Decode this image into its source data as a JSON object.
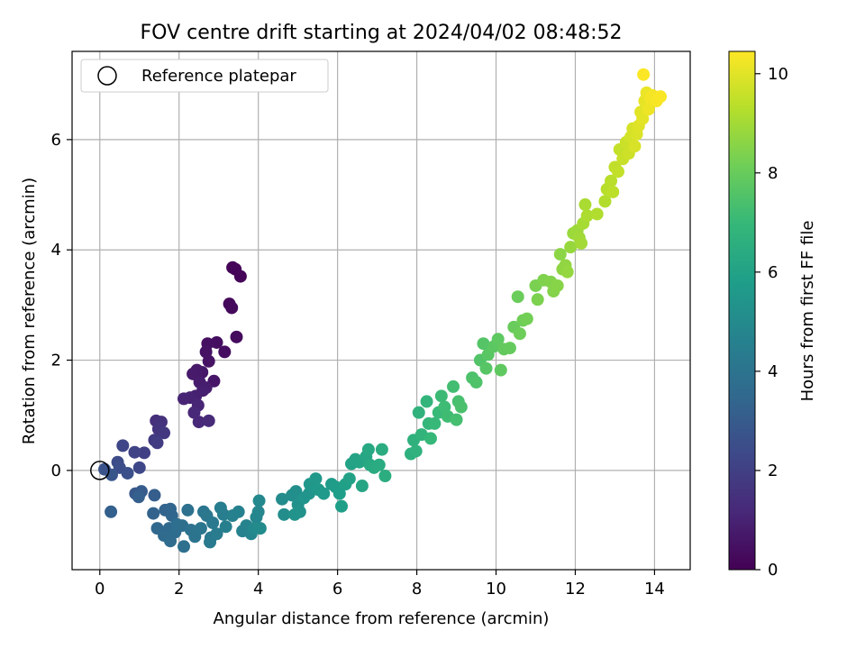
{
  "chart_data": {
    "type": "scatter",
    "title": "FOV centre drift starting at 2024/04/02 08:48:52",
    "xlabel": "Angular distance from reference (arcmin)",
    "ylabel": "Rotation from reference (arcmin)",
    "xlim": [
      -0.7,
      14.9
    ],
    "ylim": [
      -1.8,
      7.6
    ],
    "xticks": [
      0,
      2,
      4,
      6,
      8,
      10,
      12,
      14
    ],
    "yticks": [
      0,
      2,
      4,
      6
    ],
    "grid": true,
    "legend": {
      "placement": "upper-left",
      "label": "Reference platepar"
    },
    "reference_point": {
      "x": 0,
      "y": 0
    },
    "colorbar": {
      "label": "Hours from first FF file",
      "colormap": "viridis",
      "range": [
        0,
        10.45
      ],
      "ticks": [
        0,
        2,
        4,
        6,
        8,
        10
      ]
    },
    "colors": {
      "viridis": [
        "#440154",
        "#482878",
        "#3e4989",
        "#31688e",
        "#26828e",
        "#1f9e89",
        "#35b779",
        "#6ece58",
        "#b5de2b",
        "#fde725"
      ]
    },
    "points": [
      [
        3.35,
        3.68,
        0.05
      ],
      [
        3.42,
        3.65,
        0.1
      ],
      [
        3.55,
        3.52,
        0.15
      ],
      [
        3.27,
        3.02,
        0.2
      ],
      [
        3.33,
        2.95,
        0.25
      ],
      [
        3.45,
        2.42,
        0.3
      ],
      [
        3.15,
        2.15,
        0.35
      ],
      [
        2.95,
        2.32,
        0.4
      ],
      [
        2.72,
        2.3,
        0.45
      ],
      [
        2.68,
        2.15,
        0.5
      ],
      [
        2.75,
        1.98,
        0.55
      ],
      [
        2.88,
        1.62,
        0.6
      ],
      [
        2.58,
        1.78,
        0.65
      ],
      [
        2.45,
        1.82,
        0.7
      ],
      [
        2.35,
        1.75,
        0.75
      ],
      [
        2.52,
        1.6,
        0.8
      ],
      [
        2.68,
        1.5,
        0.85
      ],
      [
        2.6,
        1.45,
        0.9
      ],
      [
        2.42,
        1.35,
        0.95
      ],
      [
        2.28,
        1.32,
        1.0
      ],
      [
        2.12,
        1.3,
        1.05
      ],
      [
        2.48,
        1.18,
        1.1
      ],
      [
        2.38,
        1.05,
        1.15
      ],
      [
        2.5,
        0.88,
        1.2
      ],
      [
        2.75,
        0.9,
        1.25
      ],
      [
        1.42,
        0.9,
        1.4
      ],
      [
        1.55,
        0.88,
        1.5
      ],
      [
        1.48,
        0.75,
        1.6
      ],
      [
        1.62,
        0.68,
        1.7
      ],
      [
        1.38,
        0.55,
        1.8
      ],
      [
        1.45,
        0.5,
        1.9
      ],
      [
        1.12,
        0.32,
        2.0
      ],
      [
        0.88,
        0.33,
        2.1
      ],
      [
        0.58,
        0.45,
        2.2
      ],
      [
        1.0,
        0.05,
        2.3
      ],
      [
        0.45,
        0.15,
        2.4
      ],
      [
        0.5,
        0.05,
        2.5
      ],
      [
        0.7,
        -0.05,
        2.6
      ],
      [
        0.12,
        0.02,
        2.7
      ],
      [
        0.3,
        -0.08,
        2.8
      ],
      [
        0.9,
        -0.42,
        2.9
      ],
      [
        1.05,
        -0.38,
        3.0
      ],
      [
        1.38,
        -0.45,
        3.1
      ],
      [
        0.98,
        -0.48,
        3.15
      ],
      [
        0.28,
        -0.75,
        3.2
      ],
      [
        1.35,
        -0.78,
        3.3
      ],
      [
        1.65,
        -0.72,
        3.35
      ],
      [
        1.78,
        -0.7,
        3.4
      ],
      [
        1.82,
        -0.82,
        3.45
      ],
      [
        1.45,
        -1.05,
        3.5
      ],
      [
        1.75,
        -1.05,
        3.55
      ],
      [
        1.62,
        -1.18,
        3.6
      ],
      [
        1.78,
        -1.28,
        3.65
      ],
      [
        1.9,
        -1.12,
        3.7
      ],
      [
        1.95,
        -0.98,
        3.75
      ],
      [
        2.08,
        -1.0,
        3.8
      ],
      [
        2.12,
        -1.38,
        3.85
      ],
      [
        2.22,
        -0.72,
        3.9
      ],
      [
        2.3,
        -1.08,
        3.95
      ],
      [
        2.4,
        -1.2,
        4.0
      ],
      [
        2.55,
        -1.05,
        4.05
      ],
      [
        2.62,
        -0.75,
        4.1
      ],
      [
        2.7,
        -0.82,
        4.15
      ],
      [
        2.8,
        -1.22,
        4.2
      ],
      [
        2.85,
        -0.95,
        4.25
      ],
      [
        2.78,
        -1.3,
        4.3
      ],
      [
        2.95,
        -1.15,
        4.35
      ],
      [
        3.05,
        -0.68,
        4.4
      ],
      [
        3.12,
        -0.8,
        4.45
      ],
      [
        3.18,
        -1.02,
        4.5
      ],
      [
        3.35,
        -0.82,
        4.55
      ],
      [
        3.5,
        -0.75,
        4.6
      ],
      [
        3.6,
        -1.1,
        4.65
      ],
      [
        3.7,
        -1.0,
        4.7
      ],
      [
        3.82,
        -1.15,
        4.75
      ],
      [
        3.95,
        -0.85,
        4.8
      ],
      [
        4.0,
        -0.75,
        4.85
      ],
      [
        4.02,
        -0.55,
        4.9
      ],
      [
        3.9,
        -1.05,
        4.95
      ],
      [
        4.05,
        -1.05,
        5.0
      ],
      [
        4.6,
        -0.52,
        5.05
      ],
      [
        4.65,
        -0.8,
        5.1
      ],
      [
        4.85,
        -0.45,
        5.15
      ],
      [
        4.95,
        -0.38,
        5.2
      ],
      [
        5.0,
        -0.62,
        5.25
      ],
      [
        5.05,
        -0.75,
        5.3
      ],
      [
        4.92,
        -0.8,
        5.35
      ],
      [
        5.15,
        -0.5,
        5.4
      ],
      [
        5.28,
        -0.42,
        5.45
      ],
      [
        5.3,
        -0.25,
        5.5
      ],
      [
        5.45,
        -0.15,
        5.55
      ],
      [
        5.52,
        -0.35,
        5.6
      ],
      [
        5.65,
        -0.42,
        5.65
      ],
      [
        5.85,
        -0.25,
        5.7
      ],
      [
        5.95,
        -0.3,
        5.75
      ],
      [
        6.05,
        -0.42,
        5.8
      ],
      [
        6.1,
        -0.65,
        5.85
      ],
      [
        6.2,
        -0.25,
        5.9
      ],
      [
        6.3,
        -0.15,
        5.95
      ],
      [
        6.35,
        0.12,
        6.0
      ],
      [
        6.45,
        0.2,
        6.05
      ],
      [
        6.55,
        0.15,
        6.1
      ],
      [
        6.62,
        -0.28,
        6.15
      ],
      [
        6.72,
        0.25,
        6.2
      ],
      [
        6.78,
        0.38,
        6.25
      ],
      [
        6.82,
        0.1,
        6.3
      ],
      [
        6.92,
        0.05,
        6.35
      ],
      [
        7.05,
        0.1,
        6.4
      ],
      [
        7.12,
        0.38,
        6.45
      ],
      [
        7.2,
        -0.1,
        6.5
      ],
      [
        7.85,
        0.3,
        6.6
      ],
      [
        7.92,
        0.55,
        6.65
      ],
      [
        7.98,
        0.35,
        6.7
      ],
      [
        8.05,
        1.05,
        6.75
      ],
      [
        8.12,
        0.65,
        6.8
      ],
      [
        8.25,
        1.25,
        6.85
      ],
      [
        8.3,
        0.85,
        6.9
      ],
      [
        8.35,
        0.58,
        6.95
      ],
      [
        8.45,
        0.85,
        7.0
      ],
      [
        8.55,
        1.05,
        7.05
      ],
      [
        8.62,
        1.35,
        7.1
      ],
      [
        8.7,
        1.15,
        7.15
      ],
      [
        8.78,
        0.98,
        7.2
      ],
      [
        8.92,
        1.52,
        7.25
      ],
      [
        9.0,
        0.92,
        7.3
      ],
      [
        9.05,
        1.25,
        7.35
      ],
      [
        9.12,
        1.15,
        7.4
      ],
      [
        9.4,
        1.68,
        7.45
      ],
      [
        9.5,
        1.6,
        7.5
      ],
      [
        9.6,
        2.0,
        7.55
      ],
      [
        9.68,
        2.3,
        7.6
      ],
      [
        9.75,
        1.85,
        7.65
      ],
      [
        9.8,
        2.1,
        7.7
      ],
      [
        9.95,
        2.25,
        7.75
      ],
      [
        10.05,
        2.38,
        7.8
      ],
      [
        10.12,
        1.82,
        7.85
      ],
      [
        10.2,
        2.2,
        7.9
      ],
      [
        10.35,
        2.22,
        7.95
      ],
      [
        10.45,
        2.6,
        8.0
      ],
      [
        10.55,
        3.15,
        8.05
      ],
      [
        10.6,
        2.48,
        8.1
      ],
      [
        10.68,
        2.72,
        8.15
      ],
      [
        10.78,
        2.75,
        8.2
      ],
      [
        11.0,
        3.35,
        8.3
      ],
      [
        11.05,
        3.1,
        8.35
      ],
      [
        11.2,
        3.45,
        8.4
      ],
      [
        11.38,
        3.42,
        8.45
      ],
      [
        11.45,
        3.25,
        8.5
      ],
      [
        11.55,
        3.35,
        8.55
      ],
      [
        11.62,
        3.92,
        8.6
      ],
      [
        11.68,
        3.65,
        8.65
      ],
      [
        11.75,
        3.72,
        8.7
      ],
      [
        11.8,
        3.6,
        8.75
      ],
      [
        11.88,
        4.05,
        8.8
      ],
      [
        11.95,
        4.3,
        8.85
      ],
      [
        12.05,
        4.35,
        8.9
      ],
      [
        12.1,
        4.22,
        8.95
      ],
      [
        12.15,
        4.12,
        9.0
      ],
      [
        12.2,
        4.48,
        9.05
      ],
      [
        12.25,
        4.82,
        9.1
      ],
      [
        12.3,
        4.62,
        9.15
      ],
      [
        12.55,
        4.65,
        9.2
      ],
      [
        12.75,
        4.88,
        9.25
      ],
      [
        12.8,
        5.1,
        9.3
      ],
      [
        12.9,
        5.25,
        9.35
      ],
      [
        12.95,
        5.05,
        9.4
      ],
      [
        13.0,
        5.5,
        9.45
      ],
      [
        13.08,
        5.42,
        9.5
      ],
      [
        13.12,
        5.82,
        9.55
      ],
      [
        13.2,
        5.65,
        9.6
      ],
      [
        13.28,
        5.95,
        9.65
      ],
      [
        13.35,
        5.75,
        9.7
      ],
      [
        13.4,
        6.05,
        9.75
      ],
      [
        13.45,
        6.2,
        9.8
      ],
      [
        13.5,
        5.88,
        9.85
      ],
      [
        13.55,
        6.1,
        9.9
      ],
      [
        13.6,
        6.25,
        9.95
      ],
      [
        13.65,
        6.5,
        10.0
      ],
      [
        13.7,
        6.38,
        10.05
      ],
      [
        13.75,
        6.7,
        10.1
      ],
      [
        13.8,
        6.85,
        10.15
      ],
      [
        13.85,
        6.55,
        10.2
      ],
      [
        13.9,
        6.75,
        10.25
      ],
      [
        13.95,
        6.8,
        10.3
      ],
      [
        14.05,
        6.7,
        10.35
      ],
      [
        14.15,
        6.78,
        10.38
      ],
      [
        13.72,
        7.18,
        10.42
      ]
    ]
  }
}
